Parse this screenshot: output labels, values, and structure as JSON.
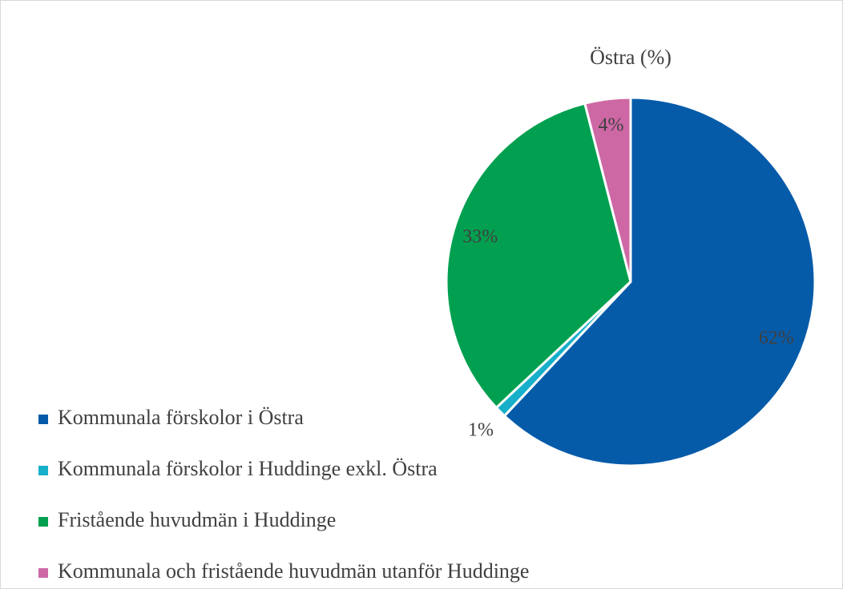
{
  "chart_data": {
    "type": "pie",
    "title": "Östra (%)",
    "categories": [
      "Kommunala förskolor i Östra",
      "Kommunala förskolor i Huddinge exkl. Östra",
      "Fristående huvudmän i Huddinge",
      "Kommunala och fristående huvudmän utanför Huddinge"
    ],
    "values": [
      62,
      1,
      33,
      4
    ],
    "value_labels": [
      "62%",
      "1%",
      "33%",
      "4%"
    ],
    "colors": [
      "#065ba9",
      "#17afc9",
      "#00a050",
      "#ce68a5"
    ]
  }
}
